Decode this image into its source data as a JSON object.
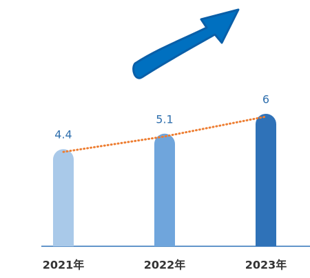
{
  "chart_data": {
    "type": "bar",
    "categories": [
      "2021年",
      "2022年",
      "2023年"
    ],
    "values": [
      4.4,
      5.1,
      6
    ],
    "colors": [
      "#a9c9e9",
      "#6fa5dc",
      "#2f72b8"
    ],
    "label_color": "#2f6fad",
    "trend_color": "#ed7d31"
  }
}
